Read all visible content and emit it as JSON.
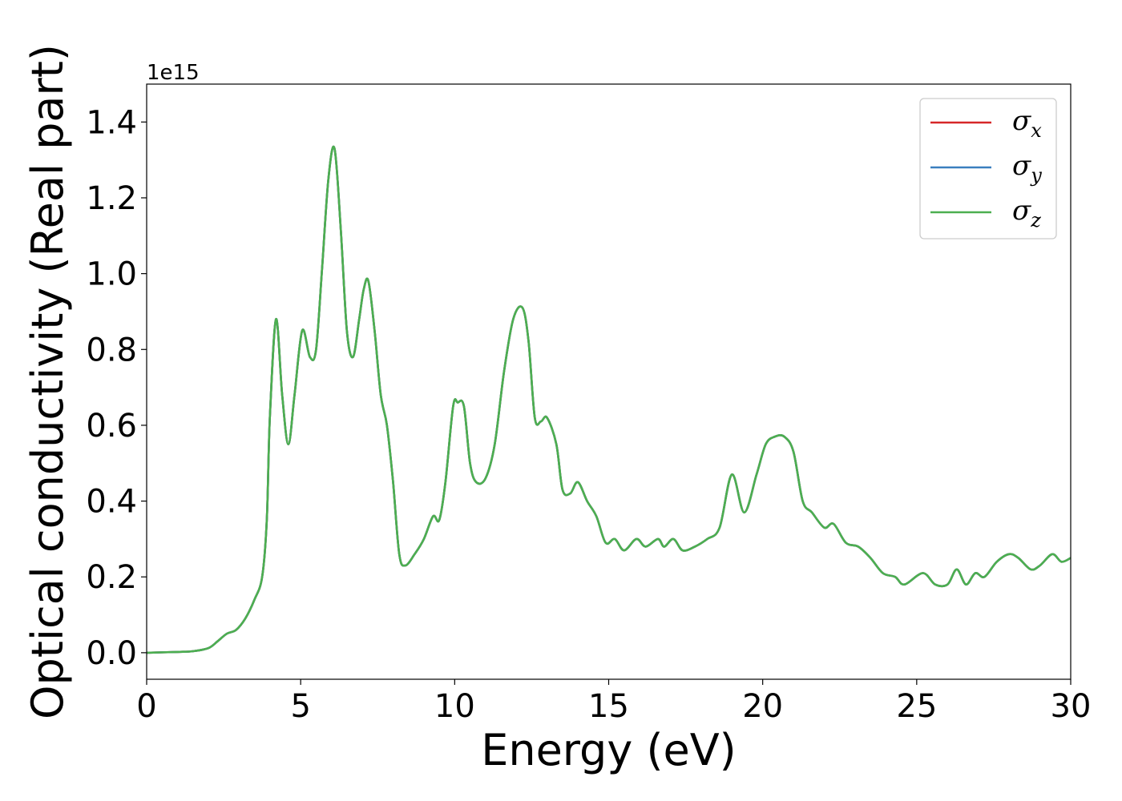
{
  "chart_data": {
    "type": "line",
    "xlabel": "Energy (eV)",
    "ylabel": "Optical conductivity (Real part)",
    "y_offset_label": "1e15",
    "y_scale": 1000000000000000.0,
    "xlim": [
      0,
      30
    ],
    "ylim": [
      -0.07,
      1.5
    ],
    "x_ticks": [
      0,
      5,
      10,
      15,
      20,
      25,
      30
    ],
    "y_ticks": [
      0.0,
      0.2,
      0.4,
      0.6,
      0.8,
      1.0,
      1.2,
      1.4
    ],
    "x_tick_labels": [
      "0",
      "5",
      "10",
      "15",
      "20",
      "25",
      "30"
    ],
    "y_tick_labels": [
      "0.0",
      "0.2",
      "0.4",
      "0.6",
      "0.8",
      "1.0",
      "1.2",
      "1.4"
    ],
    "grid": false,
    "legend_position": "top-right",
    "series": [
      {
        "name": "σ",
        "subscript": "x",
        "color": "#d62728"
      },
      {
        "name": "σ",
        "subscript": "y",
        "color": "#3a7fbf"
      },
      {
        "name": "σ",
        "subscript": "z",
        "color": "#4caf50"
      }
    ],
    "x": [
      0,
      1,
      1.5,
      2,
      2.3,
      2.6,
      2.9,
      3.2,
      3.5,
      3.75,
      3.9,
      4.0,
      4.2,
      4.4,
      4.6,
      4.8,
      5.05,
      5.3,
      5.5,
      5.7,
      5.9,
      6.1,
      6.3,
      6.5,
      6.7,
      6.9,
      7.05,
      7.2,
      7.4,
      7.6,
      7.8,
      8.0,
      8.2,
      8.4,
      8.7,
      9.0,
      9.3,
      9.5,
      9.7,
      9.95,
      10.1,
      10.3,
      10.5,
      10.7,
      11.0,
      11.3,
      11.6,
      11.9,
      12.2,
      12.4,
      12.6,
      12.8,
      13.0,
      13.3,
      13.5,
      13.75,
      14.0,
      14.3,
      14.6,
      14.9,
      15.2,
      15.5,
      15.9,
      16.2,
      16.6,
      16.8,
      17.1,
      17.4,
      17.8,
      18.2,
      18.6,
      19.0,
      19.4,
      19.8,
      20.1,
      20.4,
      20.7,
      21.0,
      21.3,
      21.6,
      22.0,
      22.3,
      22.7,
      23.1,
      23.5,
      23.9,
      24.3,
      24.6,
      25.2,
      25.6,
      26.0,
      26.3,
      26.6,
      26.9,
      27.2,
      27.6,
      28.0,
      28.3,
      28.7,
      29.0,
      29.4,
      29.7,
      30.0
    ],
    "values": [
      0.0,
      0.002,
      0.004,
      0.012,
      0.03,
      0.05,
      0.06,
      0.09,
      0.14,
      0.2,
      0.35,
      0.62,
      0.88,
      0.68,
      0.55,
      0.68,
      0.85,
      0.78,
      0.8,
      1.02,
      1.25,
      1.33,
      1.12,
      0.85,
      0.78,
      0.88,
      0.96,
      0.98,
      0.85,
      0.68,
      0.6,
      0.45,
      0.26,
      0.23,
      0.26,
      0.3,
      0.36,
      0.35,
      0.45,
      0.65,
      0.66,
      0.65,
      0.5,
      0.45,
      0.46,
      0.55,
      0.74,
      0.88,
      0.91,
      0.82,
      0.62,
      0.61,
      0.62,
      0.55,
      0.43,
      0.42,
      0.45,
      0.4,
      0.36,
      0.29,
      0.3,
      0.27,
      0.3,
      0.28,
      0.3,
      0.28,
      0.3,
      0.27,
      0.28,
      0.3,
      0.33,
      0.47,
      0.37,
      0.47,
      0.55,
      0.57,
      0.57,
      0.53,
      0.4,
      0.37,
      0.33,
      0.34,
      0.29,
      0.28,
      0.25,
      0.21,
      0.2,
      0.18,
      0.21,
      0.18,
      0.18,
      0.22,
      0.18,
      0.21,
      0.2,
      0.24,
      0.26,
      0.25,
      0.22,
      0.23,
      0.26,
      0.24,
      0.25
    ]
  }
}
